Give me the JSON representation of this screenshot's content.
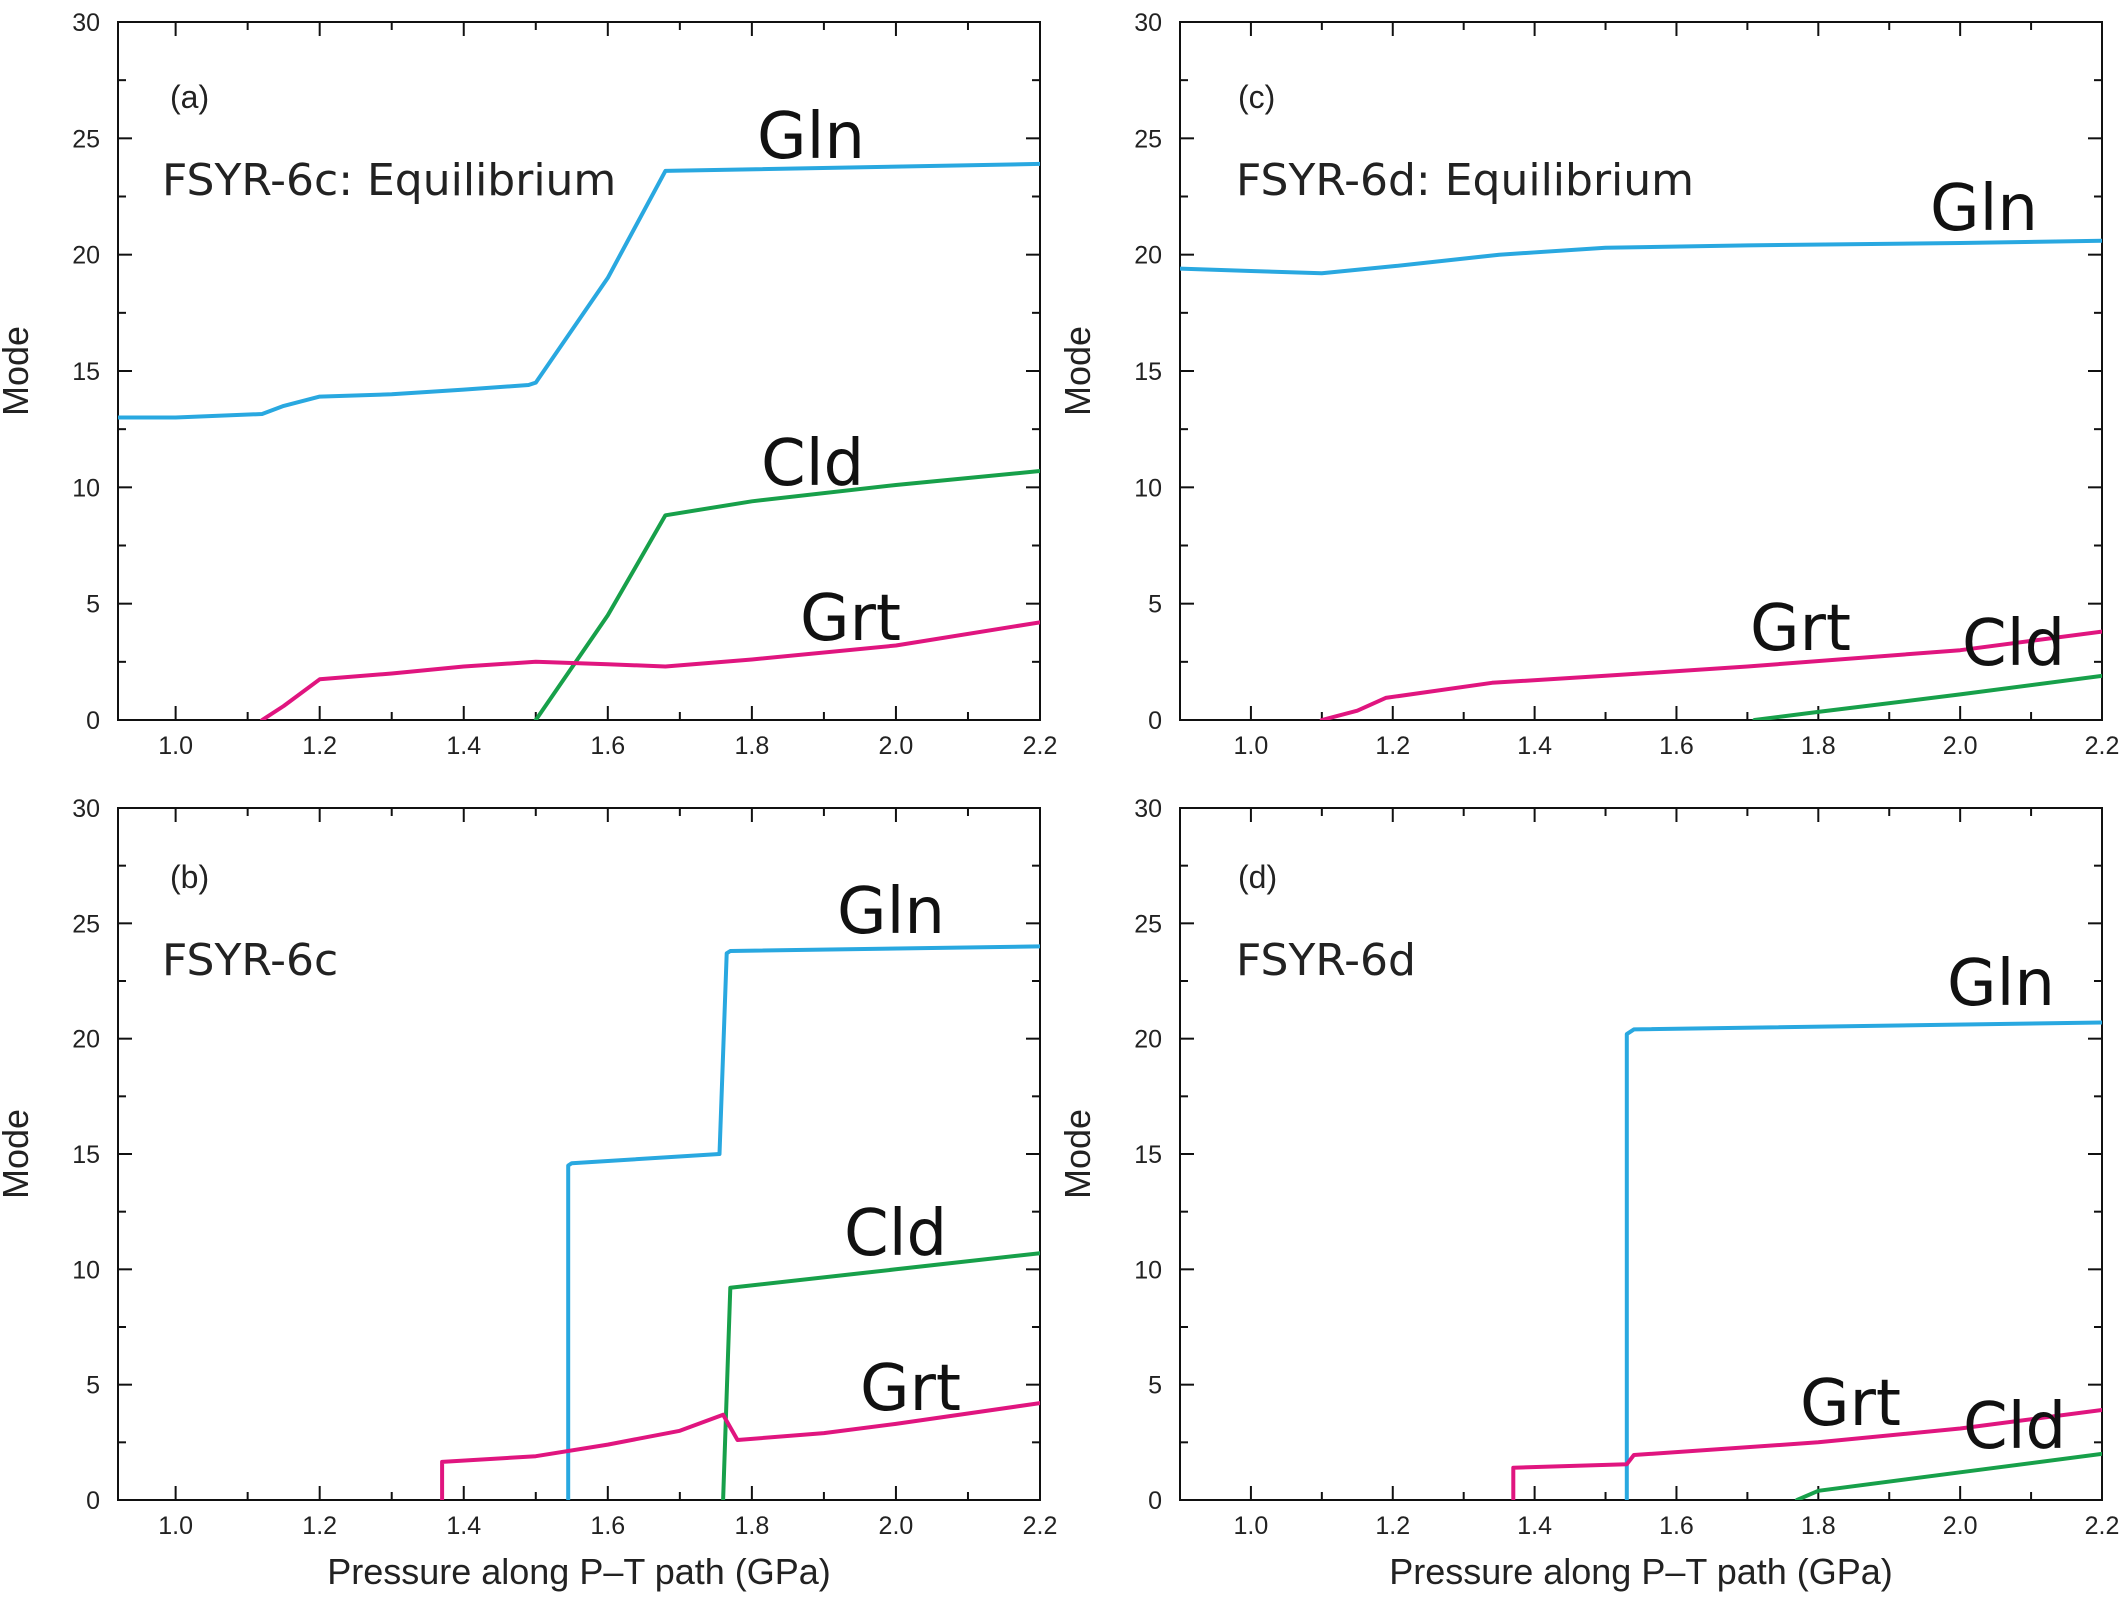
{
  "colors": {
    "Gln": "#29a8e0",
    "Cld": "#17a04a",
    "Grt": "#e0157f"
  },
  "chart_data": [
    {
      "type": "line",
      "panel": "(a)",
      "title": "FSYR-6c: Equilibrium",
      "xlabel": "",
      "ylabel": "Mode",
      "xlim": [
        0.92,
        2.2
      ],
      "ylim": [
        0,
        30
      ],
      "xticks": [
        "1.0",
        "1.2",
        "1.4",
        "1.6",
        "1.8",
        "2.0",
        "2.2"
      ],
      "yticks": [
        "0",
        "5",
        "10",
        "15",
        "20",
        "25",
        "30"
      ],
      "series": [
        {
          "name": "Gln",
          "points": [
            [
              0.92,
              13.0
            ],
            [
              1.0,
              13.0
            ],
            [
              1.12,
              13.15
            ],
            [
              1.15,
              13.5
            ],
            [
              1.2,
              13.9
            ],
            [
              1.3,
              14.0
            ],
            [
              1.4,
              14.2
            ],
            [
              1.49,
              14.4
            ],
            [
              1.5,
              14.5
            ],
            [
              1.6,
              19.0
            ],
            [
              1.68,
              23.6
            ],
            [
              2.2,
              23.9
            ]
          ]
        },
        {
          "name": "Cld",
          "points": [
            [
              1.5,
              0.0
            ],
            [
              1.6,
              4.5
            ],
            [
              1.68,
              8.8
            ],
            [
              1.8,
              9.4
            ],
            [
              2.0,
              10.1
            ],
            [
              2.2,
              10.7
            ]
          ]
        },
        {
          "name": "Grt",
          "points": [
            [
              1.12,
              0.0
            ],
            [
              1.15,
              0.6
            ],
            [
              1.2,
              1.75
            ],
            [
              1.3,
              2.0
            ],
            [
              1.4,
              2.3
            ],
            [
              1.5,
              2.5
            ],
            [
              1.6,
              2.4
            ],
            [
              1.68,
              2.3
            ],
            [
              1.8,
              2.6
            ],
            [
              2.0,
              3.2
            ],
            [
              2.2,
              4.2
            ]
          ]
        }
      ],
      "series_labels": [
        {
          "name": "Gln"
        },
        {
          "name": "Cld"
        },
        {
          "name": "Grt"
        }
      ]
    },
    {
      "type": "line",
      "panel": "(b)",
      "title": "FSYR-6c",
      "xlabel": "Pressure along P–T path (GPa)",
      "ylabel": "Mode",
      "xlim": [
        0.92,
        2.2
      ],
      "ylim": [
        0,
        30
      ],
      "xticks": [
        "1.0",
        "1.2",
        "1.4",
        "1.6",
        "1.8",
        "2.0",
        "2.2"
      ],
      "yticks": [
        "0",
        "5",
        "10",
        "15",
        "20",
        "25",
        "30"
      ],
      "series": [
        {
          "name": "Gln",
          "points": [
            [
              1.545,
              0.0
            ],
            [
              1.545,
              14.5
            ],
            [
              1.55,
              14.6
            ],
            [
              1.755,
              15.0
            ],
            [
              1.765,
              23.7
            ],
            [
              1.77,
              23.8
            ],
            [
              2.2,
              24.0
            ]
          ]
        },
        {
          "name": "Cld",
          "points": [
            [
              1.76,
              0.0
            ],
            [
              1.77,
              9.2
            ],
            [
              2.0,
              10.0
            ],
            [
              2.2,
              10.7
            ]
          ]
        },
        {
          "name": "Grt",
          "points": [
            [
              1.37,
              0.0
            ],
            [
              1.37,
              1.65
            ],
            [
              1.5,
              1.9
            ],
            [
              1.6,
              2.4
            ],
            [
              1.7,
              3.0
            ],
            [
              1.76,
              3.7
            ],
            [
              1.78,
              2.6
            ],
            [
              1.9,
              2.9
            ],
            [
              2.0,
              3.3
            ],
            [
              2.2,
              4.2
            ]
          ]
        }
      ],
      "series_labels": [
        {
          "name": "Gln"
        },
        {
          "name": "Cld"
        },
        {
          "name": "Grt"
        }
      ]
    },
    {
      "type": "line",
      "panel": "(c)",
      "title": "FSYR-6d: Equilibrium",
      "xlabel": "",
      "ylabel": "Mode",
      "xlim": [
        0.9,
        2.2
      ],
      "ylim": [
        0,
        30
      ],
      "xticks": [
        "1.0",
        "1.2",
        "1.4",
        "1.6",
        "1.8",
        "2.0",
        "2.2"
      ],
      "yticks": [
        "0",
        "5",
        "10",
        "15",
        "20",
        "25",
        "30"
      ],
      "series": [
        {
          "name": "Gln",
          "points": [
            [
              0.9,
              19.4
            ],
            [
              1.0,
              19.3
            ],
            [
              1.1,
              19.2
            ],
            [
              1.2,
              19.5
            ],
            [
              1.35,
              20.0
            ],
            [
              1.5,
              20.3
            ],
            [
              1.7,
              20.4
            ],
            [
              2.0,
              20.5
            ],
            [
              2.2,
              20.6
            ]
          ]
        },
        {
          "name": "Cld",
          "points": [
            [
              1.71,
              0.0
            ],
            [
              1.8,
              0.35
            ],
            [
              2.0,
              1.1
            ],
            [
              2.2,
              1.9
            ]
          ]
        },
        {
          "name": "Grt",
          "points": [
            [
              1.1,
              0.0
            ],
            [
              1.15,
              0.4
            ],
            [
              1.19,
              0.95
            ],
            [
              1.34,
              1.6
            ],
            [
              1.5,
              1.9
            ],
            [
              1.7,
              2.3
            ],
            [
              2.0,
              3.0
            ],
            [
              2.2,
              3.8
            ]
          ]
        }
      ],
      "series_labels": [
        {
          "name": "Gln"
        },
        {
          "name": "Grt"
        },
        {
          "name": "Cld"
        }
      ]
    },
    {
      "type": "line",
      "panel": "(d)",
      "title": "FSYR-6d",
      "xlabel": "Pressure along P–T path (GPa)",
      "ylabel": "Mode",
      "xlim": [
        0.9,
        2.2
      ],
      "ylim": [
        0,
        30
      ],
      "xticks": [
        "1.0",
        "1.2",
        "1.4",
        "1.6",
        "1.8",
        "2.0",
        "2.2"
      ],
      "yticks": [
        "0",
        "5",
        "10",
        "15",
        "20",
        "25",
        "30"
      ],
      "series": [
        {
          "name": "Gln",
          "points": [
            [
              1.53,
              0.0
            ],
            [
              1.53,
              20.2
            ],
            [
              1.54,
              20.4
            ],
            [
              2.2,
              20.7
            ]
          ]
        },
        {
          "name": "Cld",
          "points": [
            [
              1.77,
              0.0
            ],
            [
              1.8,
              0.4
            ],
            [
              2.0,
              1.2
            ],
            [
              2.2,
              2.0
            ]
          ]
        },
        {
          "name": "Grt",
          "points": [
            [
              1.37,
              0.0
            ],
            [
              1.37,
              1.4
            ],
            [
              1.53,
              1.55
            ],
            [
              1.54,
              1.95
            ],
            [
              1.8,
              2.5
            ],
            [
              2.0,
              3.1
            ],
            [
              2.2,
              3.9
            ]
          ]
        }
      ],
      "series_labels": [
        {
          "name": "Gln"
        },
        {
          "name": "Grt"
        },
        {
          "name": "Cld"
        }
      ]
    }
  ]
}
